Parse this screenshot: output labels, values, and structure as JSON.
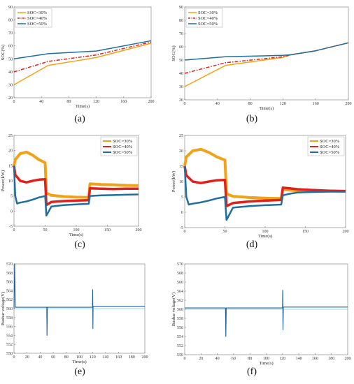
{
  "captions": [
    "(a)",
    "(b)",
    "(c)",
    "(d)",
    "(e)",
    "(f)"
  ],
  "colors": {
    "soc30": "#f0a31a",
    "soc40": "#e0201a",
    "soc50": "#1f6e9e",
    "soc50_thin": "#28b8c8",
    "bus": "#1f5e96"
  },
  "chart_data": [
    {
      "id": "a",
      "type": "line",
      "xlabel": "Time(s)",
      "ylabel": "SOC(%)",
      "xlim": [
        0,
        200
      ],
      "ylim": [
        20,
        90
      ],
      "xticks": [
        0,
        40,
        80,
        120,
        160,
        200
      ],
      "yticks": [
        20,
        30,
        40,
        50,
        60,
        70,
        80,
        90
      ],
      "legend": [
        "SOC=30%",
        "SOC=40%",
        "SOC=50%"
      ],
      "legend_position": "top-left",
      "series": [
        {
          "name": "SOC=30%",
          "x": [
            0,
            50,
            120,
            200
          ],
          "y": [
            30,
            45,
            51,
            62
          ]
        },
        {
          "name": "SOC=40%",
          "x": [
            0,
            50,
            120,
            200
          ],
          "y": [
            40,
            48,
            53,
            63
          ]
        },
        {
          "name": "SOC=50%",
          "x": [
            0,
            50,
            120,
            200
          ],
          "y": [
            50,
            54,
            56,
            64
          ]
        }
      ]
    },
    {
      "id": "b",
      "type": "line",
      "xlabel": "Time(s)",
      "ylabel": "SOC(%)",
      "xlim": [
        0,
        200
      ],
      "ylim": [
        20,
        90
      ],
      "xticks": [
        0,
        40,
        80,
        120,
        160,
        200
      ],
      "yticks": [
        20,
        30,
        40,
        50,
        60,
        70,
        80,
        90
      ],
      "legend": [
        "SOC=30%",
        "SOC=40%",
        "SOC=50%"
      ],
      "legend_position": "top-left",
      "series": [
        {
          "name": "SOC=30%",
          "x": [
            0,
            50,
            120,
            130,
            160,
            200
          ],
          "y": [
            30,
            46,
            52,
            54,
            57,
            63
          ]
        },
        {
          "name": "SOC=40%",
          "x": [
            0,
            50,
            120,
            130,
            160,
            200
          ],
          "y": [
            40,
            48,
            52.5,
            54,
            57,
            63
          ]
        },
        {
          "name": "SOC=50%",
          "x": [
            0,
            50,
            120,
            130,
            160,
            200
          ],
          "y": [
            50,
            52.5,
            53.5,
            54,
            57,
            63
          ]
        }
      ]
    },
    {
      "id": "c",
      "type": "line",
      "xlabel": "Time(s)",
      "ylabel": "Power(kW)",
      "xlim": [
        0,
        200
      ],
      "ylim": [
        -5,
        25
      ],
      "xticks": [
        0,
        50,
        100,
        150,
        200
      ],
      "yticks": [
        -5,
        0,
        5,
        10,
        15,
        20,
        25
      ],
      "legend": [
        "SOC=30%",
        "SOC=40%",
        "SOC=50%"
      ],
      "legend_position": "top-right",
      "series": [
        {
          "name": "SOC=30%",
          "x": [
            0,
            2,
            10,
            20,
            30,
            40,
            50,
            52,
            60,
            80,
            100,
            120,
            122,
            140,
            160,
            180,
            200
          ],
          "y": [
            15,
            17,
            19,
            19.5,
            18.5,
            17,
            16,
            6,
            5.2,
            4.8,
            4.6,
            4.5,
            9,
            8.8,
            8.7,
            8.5,
            8.4
          ]
        },
        {
          "name": "SOC=40%",
          "x": [
            0,
            2,
            10,
            20,
            30,
            40,
            50,
            52,
            60,
            80,
            100,
            120,
            122,
            140,
            160,
            180,
            200
          ],
          "y": [
            15,
            12,
            10,
            9.5,
            10,
            10.4,
            10.5,
            2,
            3,
            3.3,
            3.5,
            3.6,
            7.5,
            7.4,
            7.3,
            7.4,
            7.4
          ]
        },
        {
          "name": "SOC=50%",
          "x": [
            0,
            2,
            5,
            10,
            20,
            30,
            40,
            50,
            52,
            60,
            80,
            100,
            120,
            122,
            140,
            160,
            180,
            200
          ],
          "y": [
            15,
            5,
            2.5,
            2.8,
            3.2,
            3.8,
            4.5,
            5,
            -1.5,
            1.5,
            2,
            2.2,
            2.4,
            5,
            5.2,
            5.3,
            5.4,
            5.5
          ]
        }
      ]
    },
    {
      "id": "d",
      "type": "line",
      "xlabel": "Time(s)",
      "ylabel": "Power(kW)",
      "xlim": [
        0,
        200
      ],
      "ylim": [
        -5,
        25
      ],
      "xticks": [
        0,
        50,
        100,
        150,
        200
      ],
      "yticks": [
        -5,
        0,
        5,
        10,
        15,
        20,
        25
      ],
      "legend": [
        "SOC=30%",
        "SOC=40%",
        "SOC=50%"
      ],
      "legend_position": "top-right",
      "series": [
        {
          "name": "SOC=30%",
          "x": [
            0,
            2,
            10,
            20,
            30,
            40,
            50,
            52,
            60,
            80,
            100,
            120,
            122,
            130,
            140,
            160,
            180,
            200
          ],
          "y": [
            15,
            18,
            20,
            20.5,
            19.5,
            18,
            17,
            6,
            5.2,
            4.8,
            4.6,
            4.5,
            7.5,
            7.2,
            7,
            6.9,
            6.9,
            6.8
          ]
        },
        {
          "name": "SOC=40%",
          "x": [
            0,
            2,
            10,
            20,
            30,
            40,
            50,
            52,
            60,
            80,
            100,
            120,
            122,
            130,
            140,
            160,
            180,
            200
          ],
          "y": [
            15,
            12,
            10,
            9.5,
            10,
            10.4,
            10.5,
            2,
            3,
            3.5,
            3.8,
            4,
            8,
            7.8,
            7.5,
            7.2,
            7,
            6.9
          ]
        },
        {
          "name": "SOC=50%",
          "x": [
            0,
            2,
            5,
            10,
            20,
            30,
            40,
            50,
            52,
            60,
            80,
            100,
            120,
            122,
            130,
            140,
            160,
            180,
            200
          ],
          "y": [
            15,
            5,
            2.5,
            2.8,
            3.2,
            3.8,
            4.5,
            5,
            -2.5,
            1.5,
            2,
            2.3,
            2.5,
            5.5,
            6,
            6.4,
            6.6,
            6.7,
            6.7
          ]
        }
      ]
    },
    {
      "id": "e",
      "type": "line",
      "xlabel": "Time(s)",
      "ylabel": "Busbar voltage(V)",
      "xlim": [
        0,
        200
      ],
      "ylim": [
        550,
        570
      ],
      "xticks": [
        0,
        20,
        40,
        60,
        80,
        100,
        120,
        140,
        160,
        180,
        200
      ],
      "yticks": [
        550,
        552,
        554,
        556,
        558,
        560,
        562,
        564,
        566,
        568,
        570
      ],
      "series": [
        {
          "name": "",
          "x": [
            0,
            1,
            2,
            50,
            50.5,
            51,
            120,
            120.3,
            120.6,
            121,
            200
          ],
          "y": [
            560,
            570,
            560.3,
            560.3,
            554,
            560.3,
            560.3,
            564.2,
            555.5,
            560.5,
            560.5
          ]
        }
      ]
    },
    {
      "id": "f",
      "type": "line",
      "xlabel": "Time(s)",
      "ylabel": "Busbar voltage(V)",
      "xlim": [
        0,
        200
      ],
      "ylim": [
        550,
        570
      ],
      "xticks": [
        0,
        20,
        40,
        60,
        80,
        100,
        120,
        140,
        160,
        180,
        200
      ],
      "yticks": [
        550,
        552,
        554,
        556,
        558,
        560,
        562,
        564,
        566,
        568,
        570
      ],
      "series": [
        {
          "name": "",
          "x": [
            0,
            2,
            50,
            50.5,
            51,
            120,
            120.3,
            120.6,
            121,
            200
          ],
          "y": [
            560.3,
            560.3,
            560.3,
            554,
            560.3,
            560.3,
            564.2,
            555.5,
            560.5,
            560.5
          ]
        }
      ]
    }
  ]
}
